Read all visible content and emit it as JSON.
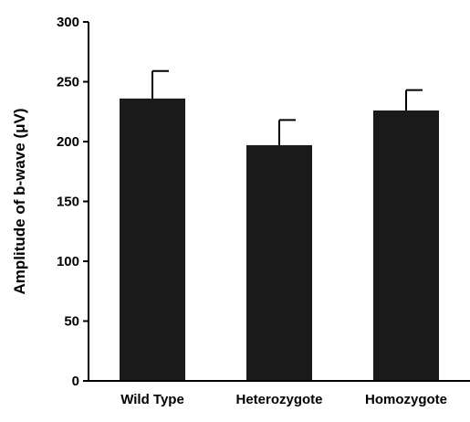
{
  "chart_data": {
    "type": "bar",
    "title": "",
    "xlabel": "",
    "ylabel": "Amplitude of b-wave (μV)",
    "categories": [
      "Wild Type",
      "Heterozygote",
      "Homozygote"
    ],
    "values": [
      236,
      197,
      226
    ],
    "error_upper": [
      259,
      218,
      243
    ],
    "ylim": [
      0,
      300
    ],
    "yticks": [
      0,
      50,
      100,
      150,
      200,
      250,
      300
    ],
    "ytick_labels": [
      "0",
      "50",
      "100",
      "150",
      "200",
      "250",
      "300"
    ],
    "grid": false,
    "legend": "none",
    "bar_color": "#1a1a1a",
    "axis_color": "#000000"
  }
}
